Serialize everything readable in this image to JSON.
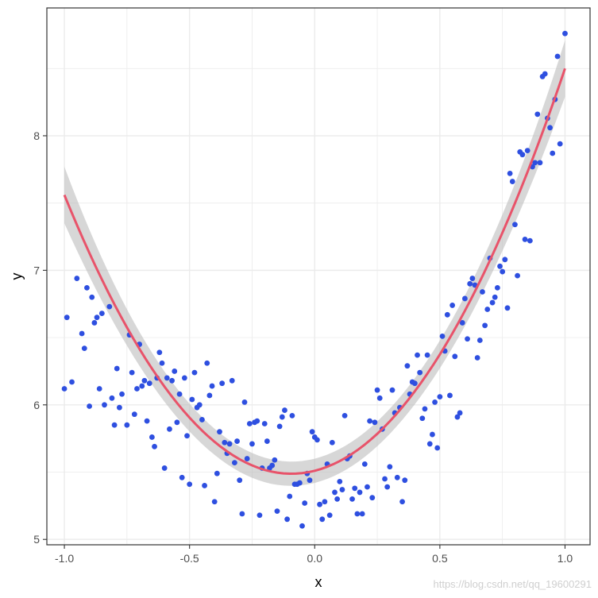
{
  "chart_data": {
    "type": "scatter",
    "xlabel": "x",
    "ylabel": "y",
    "xlim": [
      -1.07,
      1.1
    ],
    "ylim": [
      4.96,
      8.95
    ],
    "x_ticks": [
      -1.0,
      -0.5,
      0.0,
      0.5,
      1.0
    ],
    "x_tick_labels": [
      "-1.0",
      "-0.5",
      "0.0",
      "0.5",
      "1.0"
    ],
    "y_ticks": [
      5,
      6,
      7,
      8
    ],
    "y_tick_labels": [
      "5",
      "6",
      "7",
      "8"
    ],
    "grid": true,
    "legend": "none",
    "colors": {
      "points": "#2e4fe0",
      "smooth_line": "#e8536a",
      "confidence_band": "#bdbdbd",
      "grid": "#ebebeb",
      "border": "#333333"
    },
    "points": [
      [
        -1.0,
        6.12
      ],
      [
        -0.99,
        6.65
      ],
      [
        -0.97,
        6.17
      ],
      [
        -0.95,
        6.94
      ],
      [
        -0.93,
        6.53
      ],
      [
        -0.92,
        6.42
      ],
      [
        -0.91,
        6.87
      ],
      [
        -0.9,
        5.99
      ],
      [
        -0.89,
        6.8
      ],
      [
        -0.88,
        6.61
      ],
      [
        -0.87,
        6.65
      ],
      [
        -0.86,
        6.12
      ],
      [
        -0.85,
        6.68
      ],
      [
        -0.84,
        6.0
      ],
      [
        -0.82,
        6.73
      ],
      [
        -0.81,
        6.05
      ],
      [
        -0.8,
        5.85
      ],
      [
        -0.79,
        6.27
      ],
      [
        -0.78,
        5.98
      ],
      [
        -0.77,
        6.08
      ],
      [
        -0.75,
        5.85
      ],
      [
        -0.74,
        6.52
      ],
      [
        -0.73,
        6.24
      ],
      [
        -0.72,
        5.93
      ],
      [
        -0.71,
        6.12
      ],
      [
        -0.7,
        6.45
      ],
      [
        -0.69,
        6.14
      ],
      [
        -0.68,
        6.18
      ],
      [
        -0.67,
        5.88
      ],
      [
        -0.66,
        6.16
      ],
      [
        -0.65,
        5.76
      ],
      [
        -0.64,
        5.69
      ],
      [
        -0.63,
        6.2
      ],
      [
        -0.62,
        6.39
      ],
      [
        -0.61,
        6.31
      ],
      [
        -0.6,
        5.53
      ],
      [
        -0.59,
        6.2
      ],
      [
        -0.58,
        5.82
      ],
      [
        -0.57,
        6.18
      ],
      [
        -0.56,
        6.25
      ],
      [
        -0.55,
        5.87
      ],
      [
        -0.54,
        6.08
      ],
      [
        -0.53,
        5.46
      ],
      [
        -0.52,
        6.2
      ],
      [
        -0.51,
        5.77
      ],
      [
        -0.5,
        5.41
      ],
      [
        -0.49,
        6.04
      ],
      [
        -0.48,
        6.24
      ],
      [
        -0.47,
        5.98
      ],
      [
        -0.46,
        6.0
      ],
      [
        -0.45,
        5.89
      ],
      [
        -0.44,
        5.4
      ],
      [
        -0.43,
        6.31
      ],
      [
        -0.42,
        6.07
      ],
      [
        -0.41,
        6.14
      ],
      [
        -0.4,
        5.28
      ],
      [
        -0.39,
        5.49
      ],
      [
        -0.38,
        5.8
      ],
      [
        -0.37,
        6.16
      ],
      [
        -0.36,
        5.72
      ],
      [
        -0.35,
        5.64
      ],
      [
        -0.34,
        5.71
      ],
      [
        -0.33,
        6.18
      ],
      [
        -0.32,
        5.57
      ],
      [
        -0.31,
        5.73
      ],
      [
        -0.3,
        5.44
      ],
      [
        -0.29,
        5.19
      ],
      [
        -0.28,
        6.02
      ],
      [
        -0.27,
        5.6
      ],
      [
        -0.26,
        5.86
      ],
      [
        -0.25,
        5.71
      ],
      [
        -0.24,
        5.87
      ],
      [
        -0.23,
        5.88
      ],
      [
        -0.22,
        5.18
      ],
      [
        -0.21,
        5.53
      ],
      [
        -0.2,
        5.86
      ],
      [
        -0.19,
        5.73
      ],
      [
        -0.18,
        5.53
      ],
      [
        -0.17,
        5.55
      ],
      [
        -0.16,
        5.59
      ],
      [
        -0.15,
        5.21
      ],
      [
        -0.14,
        5.84
      ],
      [
        -0.13,
        5.91
      ],
      [
        -0.12,
        5.96
      ],
      [
        -0.11,
        5.15
      ],
      [
        -0.1,
        5.32
      ],
      [
        -0.09,
        5.92
      ],
      [
        -0.08,
        5.41
      ],
      [
        -0.07,
        5.41
      ],
      [
        -0.06,
        5.42
      ],
      [
        -0.05,
        5.1
      ],
      [
        -0.04,
        5.27
      ],
      [
        -0.03,
        5.49
      ],
      [
        -0.02,
        5.44
      ],
      [
        -0.01,
        5.8
      ],
      [
        0.0,
        5.76
      ],
      [
        0.01,
        5.74
      ],
      [
        0.02,
        5.26
      ],
      [
        0.03,
        5.15
      ],
      [
        0.04,
        5.28
      ],
      [
        0.05,
        5.56
      ],
      [
        0.06,
        5.18
      ],
      [
        0.07,
        5.72
      ],
      [
        0.08,
        5.35
      ],
      [
        0.09,
        5.3
      ],
      [
        0.1,
        5.43
      ],
      [
        0.11,
        5.37
      ],
      [
        0.12,
        5.92
      ],
      [
        0.13,
        5.6
      ],
      [
        0.14,
        5.62
      ],
      [
        0.15,
        5.3
      ],
      [
        0.16,
        5.38
      ],
      [
        0.17,
        5.19
      ],
      [
        0.18,
        5.35
      ],
      [
        0.19,
        5.19
      ],
      [
        0.2,
        5.56
      ],
      [
        0.21,
        5.39
      ],
      [
        0.22,
        5.88
      ],
      [
        0.23,
        5.31
      ],
      [
        0.24,
        5.87
      ],
      [
        0.25,
        6.11
      ],
      [
        0.26,
        6.05
      ],
      [
        0.27,
        5.82
      ],
      [
        0.28,
        5.45
      ],
      [
        0.29,
        5.39
      ],
      [
        0.3,
        5.54
      ],
      [
        0.31,
        6.11
      ],
      [
        0.32,
        5.94
      ],
      [
        0.33,
        5.46
      ],
      [
        0.34,
        5.98
      ],
      [
        0.35,
        5.28
      ],
      [
        0.36,
        5.44
      ],
      [
        0.37,
        6.29
      ],
      [
        0.38,
        6.08
      ],
      [
        0.39,
        6.17
      ],
      [
        0.4,
        6.16
      ],
      [
        0.41,
        6.37
      ],
      [
        0.42,
        6.24
      ],
      [
        0.43,
        5.9
      ],
      [
        0.44,
        5.97
      ],
      [
        0.45,
        6.37
      ],
      [
        0.46,
        5.71
      ],
      [
        0.47,
        5.78
      ],
      [
        0.48,
        6.02
      ],
      [
        0.49,
        5.68
      ],
      [
        0.5,
        6.06
      ],
      [
        0.51,
        6.51
      ],
      [
        0.52,
        6.4
      ],
      [
        0.53,
        6.67
      ],
      [
        0.54,
        6.07
      ],
      [
        0.55,
        6.74
      ],
      [
        0.56,
        6.36
      ],
      [
        0.57,
        5.91
      ],
      [
        0.58,
        5.94
      ],
      [
        0.59,
        6.61
      ],
      [
        0.6,
        6.79
      ],
      [
        0.61,
        6.49
      ],
      [
        0.62,
        6.9
      ],
      [
        0.63,
        6.94
      ],
      [
        0.64,
        6.89
      ],
      [
        0.65,
        6.35
      ],
      [
        0.66,
        6.48
      ],
      [
        0.67,
        6.84
      ],
      [
        0.68,
        6.59
      ],
      [
        0.69,
        6.71
      ],
      [
        0.7,
        7.09
      ],
      [
        0.71,
        6.76
      ],
      [
        0.72,
        6.8
      ],
      [
        0.73,
        6.87
      ],
      [
        0.74,
        7.03
      ],
      [
        0.75,
        6.99
      ],
      [
        0.76,
        7.08
      ],
      [
        0.77,
        6.72
      ],
      [
        0.78,
        7.72
      ],
      [
        0.79,
        7.66
      ],
      [
        0.8,
        7.34
      ],
      [
        0.81,
        6.96
      ],
      [
        0.82,
        7.88
      ],
      [
        0.83,
        7.86
      ],
      [
        0.84,
        7.23
      ],
      [
        0.85,
        7.89
      ],
      [
        0.86,
        7.22
      ],
      [
        0.87,
        7.77
      ],
      [
        0.88,
        7.8
      ],
      [
        0.89,
        8.16
      ],
      [
        0.9,
        7.8
      ],
      [
        0.91,
        8.44
      ],
      [
        0.92,
        8.46
      ],
      [
        0.93,
        8.13
      ],
      [
        0.94,
        8.06
      ],
      [
        0.95,
        7.87
      ],
      [
        0.96,
        8.27
      ],
      [
        0.97,
        8.59
      ],
      [
        0.98,
        7.94
      ],
      [
        1.0,
        8.76
      ]
    ],
    "smooth": {
      "method": "quadratic",
      "coef": [
        5.51,
        0.47,
        2.52
      ],
      "se": [
        0.09,
        0.03,
        0.09
      ],
      "x_range": [
        -1.0,
        1.0
      ]
    },
    "watermark": "https://blog.csdn.net/qq_19600291"
  }
}
